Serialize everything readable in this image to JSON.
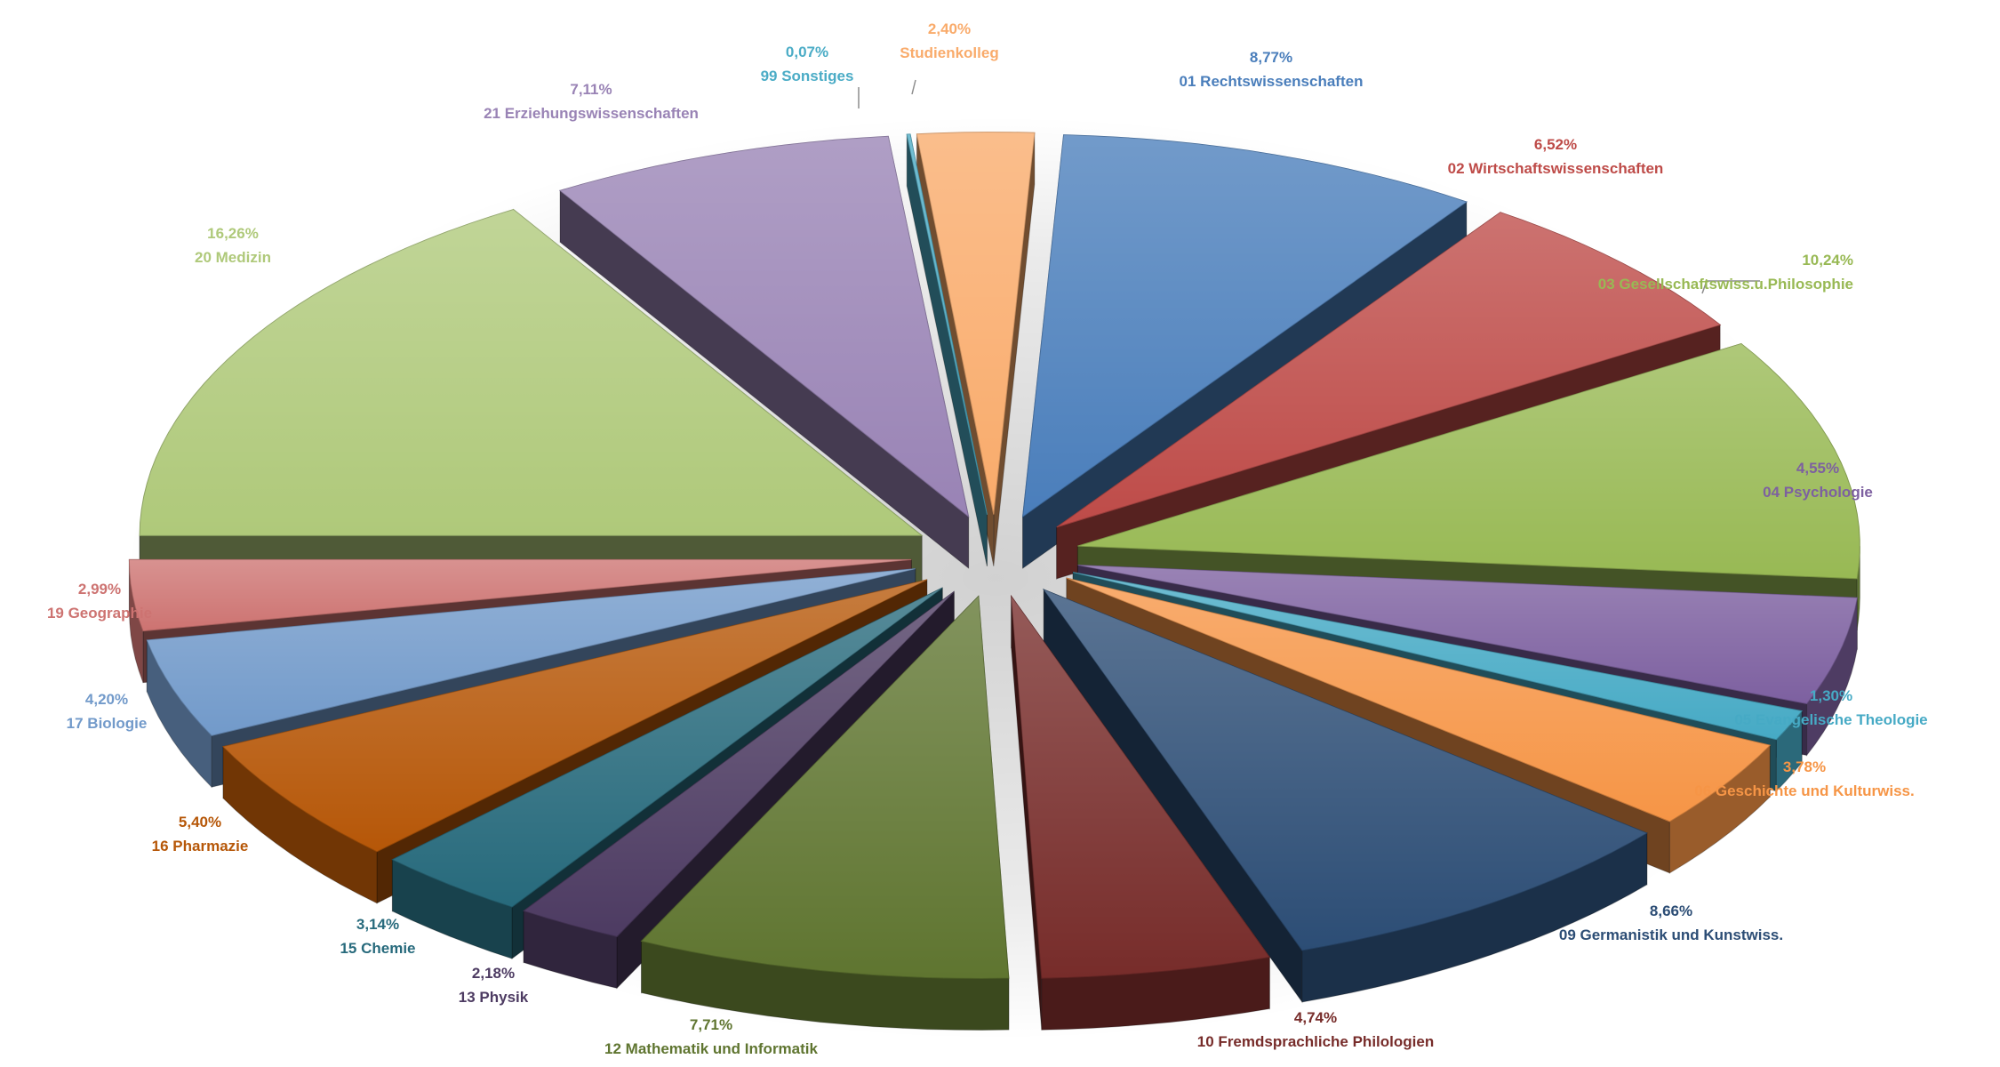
{
  "chart_data": {
    "type": "pie",
    "style": "3d-exploded",
    "title": "",
    "legend": "none",
    "slices": [
      {
        "name": "01 Rechtswissenschaften",
        "pct_label": "8,77%",
        "value": 8.77,
        "color": "#4a7ebb"
      },
      {
        "name": "02 Wirtschaftswissenschaften",
        "pct_label": "6,52%",
        "value": 6.52,
        "color": "#be4b48"
      },
      {
        "name": "03 Gesellschaftswiss.u.Philosophie",
        "pct_label": "10,24%",
        "value": 10.24,
        "color": "#98b954"
      },
      {
        "name": "04 Psychologie",
        "pct_label": "4,55%",
        "value": 4.55,
        "color": "#7d60a0"
      },
      {
        "name": "05 Evangelische Theologie",
        "pct_label": "1,30%",
        "value": 1.3,
        "color": "#46aac5"
      },
      {
        "name": "06 Geschichte und Kulturwiss.",
        "pct_label": "3,78%",
        "value": 3.78,
        "color": "#f69546"
      },
      {
        "name": "09 Germanistik und Kunstwiss.",
        "pct_label": "8,66%",
        "value": 8.66,
        "color": "#2c4d75"
      },
      {
        "name": "10 Fremdsprachliche Philologien",
        "pct_label": "4,74%",
        "value": 4.74,
        "color": "#772c2a"
      },
      {
        "name": "12 Mathematik und Informatik",
        "pct_label": "7,71%",
        "value": 7.71,
        "color": "#5f7530"
      },
      {
        "name": "13 Physik",
        "pct_label": "2,18%",
        "value": 2.18,
        "color": "#4d3b62"
      },
      {
        "name": "15 Chemie",
        "pct_label": "3,14%",
        "value": 3.14,
        "color": "#276a7c"
      },
      {
        "name": "16 Pharmazie",
        "pct_label": "5,40%",
        "value": 5.4,
        "color": "#b65708"
      },
      {
        "name": "17 Biologie",
        "pct_label": "4,20%",
        "value": 4.2,
        "color": "#729aca"
      },
      {
        "name": "19 Geographie",
        "pct_label": "2,99%",
        "value": 2.99,
        "color": "#cd7371"
      },
      {
        "name": "20 Medizin",
        "pct_label": "16,26%",
        "value": 16.26,
        "color": "#afc97a"
      },
      {
        "name": "21 Erziehungswissenschaften",
        "pct_label": "7,11%",
        "value": 7.11,
        "color": "#9983b5"
      },
      {
        "name": "99 Sonstiges",
        "pct_label": "0,07%",
        "value": 0.07,
        "color": "#4bacc6"
      },
      {
        "name": "Studienkolleg",
        "pct_label": "2,40%",
        "value": 2.4,
        "color": "#f9ab6b"
      }
    ]
  }
}
